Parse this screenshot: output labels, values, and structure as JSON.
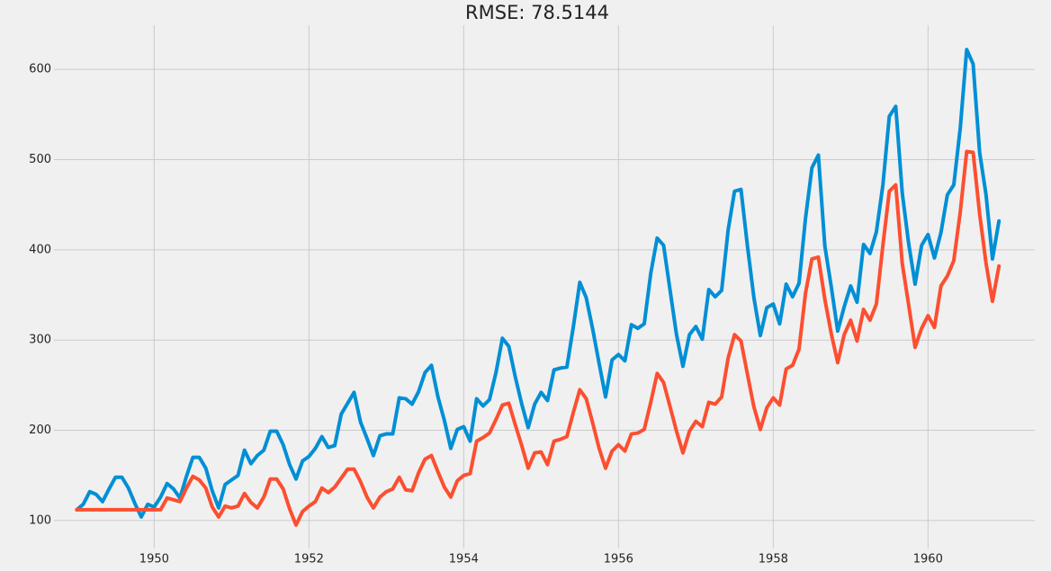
{
  "chart_data": {
    "type": "line",
    "title": "RMSE: 78.5144",
    "x": [
      1949.0,
      1949.083,
      1949.167,
      1949.25,
      1949.333,
      1949.417,
      1949.5,
      1949.583,
      1949.667,
      1949.75,
      1949.833,
      1949.917,
      1950.0,
      1950.083,
      1950.167,
      1950.25,
      1950.333,
      1950.417,
      1950.5,
      1950.583,
      1950.667,
      1950.75,
      1950.833,
      1950.917,
      1951.0,
      1951.083,
      1951.167,
      1951.25,
      1951.333,
      1951.417,
      1951.5,
      1951.583,
      1951.667,
      1951.75,
      1951.833,
      1951.917,
      1952.0,
      1952.083,
      1952.167,
      1952.25,
      1952.333,
      1952.417,
      1952.5,
      1952.583,
      1952.667,
      1952.75,
      1952.833,
      1952.917,
      1953.0,
      1953.083,
      1953.167,
      1953.25,
      1953.333,
      1953.417,
      1953.5,
      1953.583,
      1953.667,
      1953.75,
      1953.833,
      1953.917,
      1954.0,
      1954.083,
      1954.167,
      1954.25,
      1954.333,
      1954.417,
      1954.5,
      1954.583,
      1954.667,
      1954.75,
      1954.833,
      1954.917,
      1955.0,
      1955.083,
      1955.167,
      1955.25,
      1955.333,
      1955.417,
      1955.5,
      1955.583,
      1955.667,
      1955.75,
      1955.833,
      1955.917,
      1956.0,
      1956.083,
      1956.167,
      1956.25,
      1956.333,
      1956.417,
      1956.5,
      1956.583,
      1956.667,
      1956.75,
      1956.833,
      1956.917,
      1957.0,
      1957.083,
      1957.167,
      1957.25,
      1957.333,
      1957.417,
      1957.5,
      1957.583,
      1957.667,
      1957.75,
      1957.833,
      1957.917,
      1958.0,
      1958.083,
      1958.167,
      1958.25,
      1958.333,
      1958.417,
      1958.5,
      1958.583,
      1958.667,
      1958.75,
      1958.833,
      1958.917,
      1959.0,
      1959.083,
      1959.167,
      1959.25,
      1959.333,
      1959.417,
      1959.5,
      1959.583,
      1959.667,
      1959.75,
      1959.833,
      1959.917,
      1960.0,
      1960.083,
      1960.167,
      1960.25,
      1960.333,
      1960.417,
      1960.5,
      1960.583,
      1960.667,
      1960.75,
      1960.833,
      1960.917
    ],
    "series": [
      {
        "color": "#008fd5",
        "values": [
          112,
          118,
          132,
          129,
          121,
          135,
          148,
          148,
          136,
          119,
          104,
          118,
          115,
          126,
          141,
          135,
          125,
          149,
          170,
          170,
          158,
          133,
          114,
          140,
          145,
          150,
          178,
          163,
          172,
          178,
          199,
          199,
          184,
          162,
          146,
          166,
          171,
          180,
          193,
          181,
          183,
          218,
          230,
          242,
          209,
          191,
          172,
          194,
          196,
          196,
          236,
          235,
          229,
          243,
          264,
          272,
          237,
          211,
          180,
          201,
          204,
          188,
          235,
          227,
          234,
          264,
          302,
          293,
          259,
          229,
          203,
          229,
          242,
          233,
          267,
          269,
          270,
          315,
          364,
          347,
          312,
          274,
          237,
          278,
          284,
          277,
          317,
          313,
          318,
          374,
          413,
          405,
          355,
          306,
          271,
          306,
          315,
          301,
          356,
          348,
          355,
          422,
          465,
          467,
          404,
          347,
          305,
          336,
          340,
          318,
          362,
          348,
          363,
          435,
          491,
          505,
          404,
          359,
          310,
          337,
          360,
          342,
          406,
          396,
          420,
          472,
          548,
          559,
          463,
          407,
          362,
          405,
          417,
          391,
          419,
          461,
          472,
          535,
          622,
          606,
          508,
          461,
          390,
          432
        ]
      },
      {
        "color": "#fc4f30",
        "values": [
          112,
          112,
          112,
          112,
          112,
          112,
          112,
          112,
          112,
          112,
          112,
          112,
          112,
          112,
          125,
          123,
          121,
          136,
          149,
          145,
          136,
          115,
          104,
          116,
          114,
          116,
          130,
          120,
          114,
          126,
          146,
          146,
          135,
          113,
          95,
          110,
          116,
          121,
          136,
          131,
          137,
          147,
          157,
          157,
          143,
          126,
          114,
          126,
          132,
          135,
          148,
          134,
          133,
          153,
          168,
          172,
          154,
          137,
          126,
          144,
          150,
          152,
          188,
          192,
          197,
          212,
          228,
          230,
          206,
          183,
          158,
          175,
          176,
          162,
          188,
          190,
          193,
          220,
          245,
          235,
          208,
          180,
          158,
          177,
          184,
          177,
          196,
          197,
          201,
          231,
          263,
          253,
          226,
          199,
          175,
          199,
          210,
          204,
          231,
          229,
          237,
          280,
          306,
          299,
          262,
          226,
          201,
          225,
          236,
          228,
          268,
          272,
          290,
          352,
          390,
          392,
          345,
          307,
          275,
          306,
          322,
          299,
          334,
          322,
          340,
          405,
          465,
          472,
          385,
          339,
          292,
          313,
          327,
          314,
          360,
          371,
          388,
          442,
          509,
          508,
          440,
          385,
          343,
          382
        ]
      }
    ],
    "xlim": [
      1948.24,
      1961.38
    ],
    "xticks": [
      1950,
      1952,
      1954,
      1956,
      1958,
      1960
    ],
    "ylim": [
      69,
      649
    ],
    "yticks": [
      100,
      200,
      300,
      400,
      500,
      600
    ],
    "grid": true
  }
}
